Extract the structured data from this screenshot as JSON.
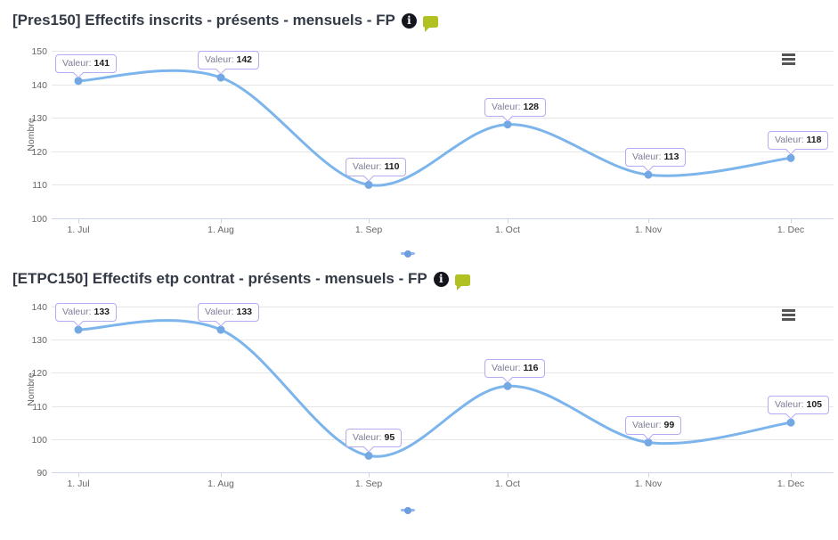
{
  "colors": {
    "series_line": "#7cb5ec",
    "marker_fill": "#73a8e3",
    "tooltip_border": "#b4abf2",
    "grid_line": "#e6e6e6",
    "axis_line": "#ccd6eb",
    "axis_label": "#666666",
    "title_text": "#333a45",
    "info_icon_bg": "#15151d",
    "comment_icon_bg": "#b1c122",
    "menu_icon_bars": "#555555"
  },
  "chart_data": [
    {
      "type": "line",
      "title": "[Pres150] Effectifs inscrits - présents - mensuels - FP",
      "xlabel": "",
      "ylabel": "Nombre",
      "categories": [
        "1. Jul",
        "1. Aug",
        "1. Sep",
        "1. Oct",
        "1. Nov",
        "1. Dec"
      ],
      "series": [
        {
          "name": "",
          "values": [
            141,
            142,
            110,
            128,
            113,
            118
          ]
        }
      ],
      "ylim": [
        100,
        150
      ],
      "yticks": [
        100,
        110,
        120,
        130,
        140,
        150
      ],
      "grid": true,
      "legend_position": "bottom-center",
      "tooltip_prefix": "Valeur:",
      "tooltips": [
        "Valeur: 141",
        "Valeur: 142",
        "Valeur: 110",
        "Valeur: 128",
        "Valeur: 113",
        "Valeur: 118"
      ],
      "header_icons": [
        "info-icon",
        "comment-icon"
      ],
      "export_menu_icon": "hamburger-menu-icon"
    },
    {
      "type": "line",
      "title": "[ETPC150] Effectifs etp contrat - présents - mensuels - FP",
      "xlabel": "",
      "ylabel": "Nombre",
      "categories": [
        "1. Jul",
        "1. Aug",
        "1. Sep",
        "1. Oct",
        "1. Nov",
        "1. Dec"
      ],
      "series": [
        {
          "name": "",
          "values": [
            133,
            133,
            95,
            116,
            99,
            105
          ]
        }
      ],
      "ylim": [
        90,
        140
      ],
      "yticks": [
        90,
        100,
        110,
        120,
        130,
        140
      ],
      "grid": true,
      "legend_position": "bottom-center",
      "tooltip_prefix": "Valeur:",
      "tooltips": [
        "Valeur: 133",
        "Valeur: 133",
        "Valeur: 95",
        "Valeur: 116",
        "Valeur: 99",
        "Valeur: 105"
      ],
      "header_icons": [
        "info-icon",
        "comment-icon"
      ],
      "export_menu_icon": "hamburger-menu-icon"
    }
  ]
}
